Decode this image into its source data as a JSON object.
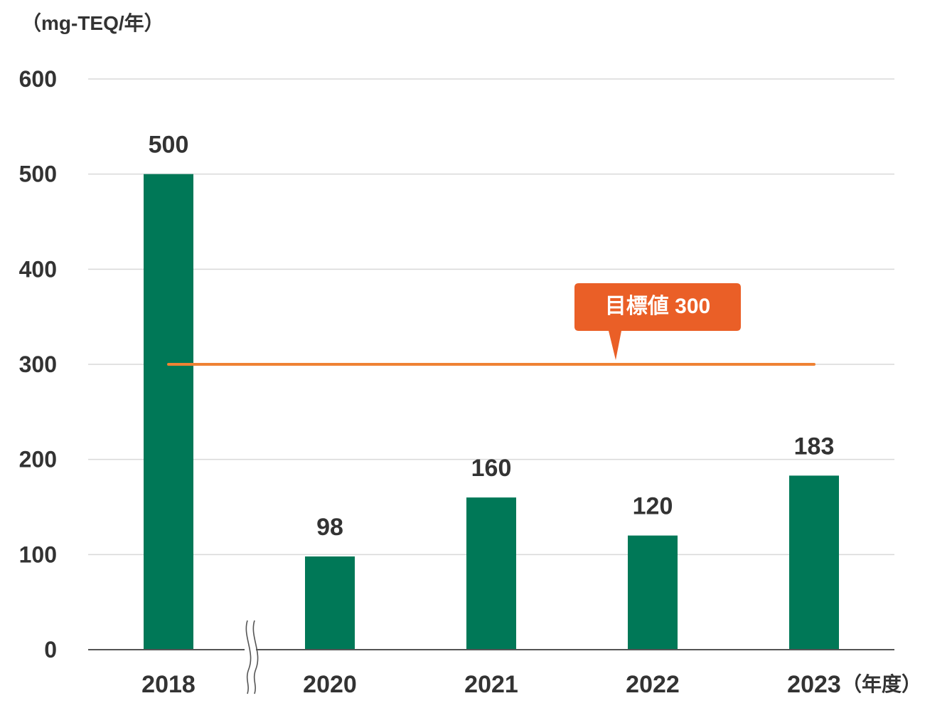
{
  "chart_data": {
    "type": "bar",
    "ylabel": "（mg-TEQ/年）",
    "xlabel": "（年度）",
    "categories": [
      "2018",
      "2020",
      "2021",
      "2022",
      "2023"
    ],
    "values": [
      500,
      98,
      160,
      120,
      183
    ],
    "data_labels": [
      "500",
      "98",
      "160",
      "120",
      "183"
    ],
    "ylim": [
      0,
      600
    ],
    "yticks": [
      0,
      100,
      200,
      300,
      400,
      500,
      600
    ],
    "ytick_labels": [
      "0",
      "100",
      "200",
      "300",
      "400",
      "500",
      "600"
    ],
    "grid": true,
    "axis_break_between": [
      "2018",
      "2020"
    ],
    "target_line": {
      "label": "目標値 300",
      "value": 300,
      "from_category": "2018",
      "to_category": "2023"
    },
    "colors": {
      "bar": "#007857",
      "target_line": "#ef8234",
      "target_callout": "#ea5f27",
      "grid": "#d9d9d9",
      "axis": "#555555",
      "text": "#333333"
    }
  }
}
